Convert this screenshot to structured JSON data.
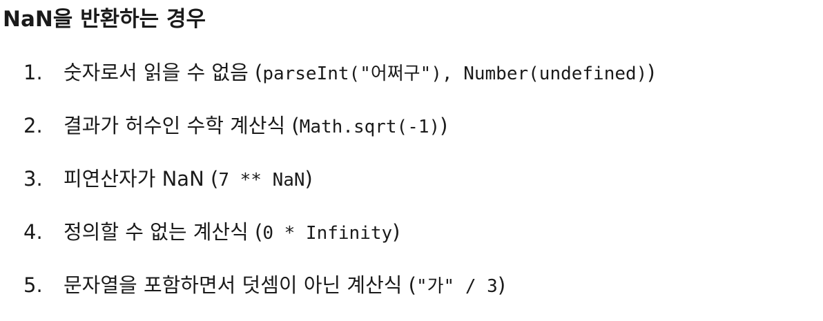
{
  "title": "NaN을 반환하는 경우",
  "items": [
    {
      "num": "1.",
      "text": "숫자로서 읽을 수 없음 (",
      "code": "parseInt(\"어쩌구\"), Number(undefined)",
      "close": ")"
    },
    {
      "num": "2.",
      "text": "결과가 허수인 수학 계산식 (",
      "code": "Math.sqrt(-1)",
      "close": ")"
    },
    {
      "num": "3.",
      "text": "피연산자가 NaN (",
      "code": "7 ** NaN",
      "close": ")"
    },
    {
      "num": "4.",
      "text": "정의할 수 없는 계산식 (",
      "code": "0 * Infinity",
      "close": ")"
    },
    {
      "num": "5.",
      "text": "문자열을 포함하면서 덧셈이 아닌 계산식 (",
      "code": "\"가\" / 3",
      "close": ")"
    }
  ]
}
